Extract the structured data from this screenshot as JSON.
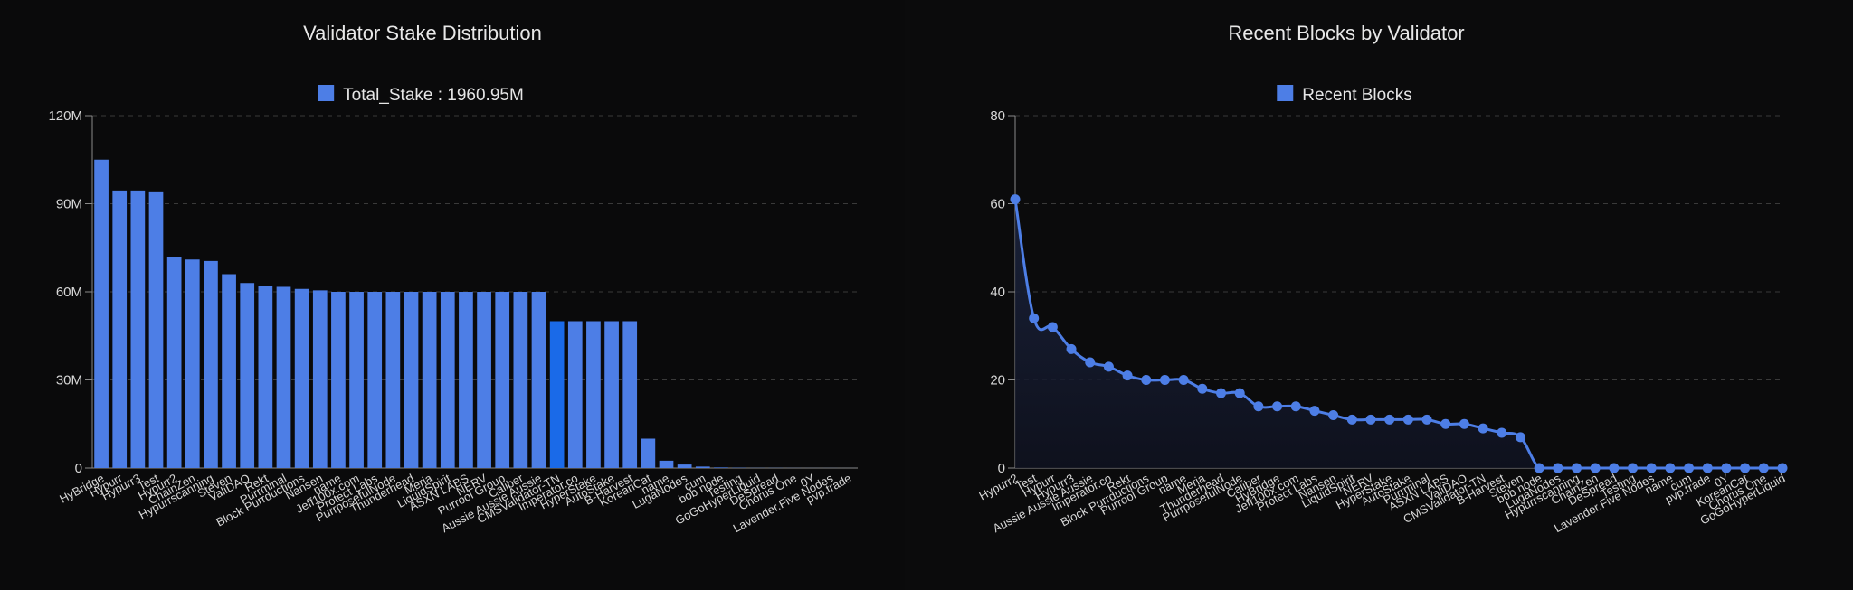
{
  "chart_data": [
    {
      "type": "bar",
      "title": "Validator Stake Distribution",
      "legend": "Total_Stake : 1960.95M",
      "legend_color": "#4d7ee6",
      "bar_color": "#4d7ee6",
      "highlight_color": "#1a6ae8",
      "highlight_index": 25,
      "ylim": [
        0,
        120
      ],
      "yticks": [
        0,
        30,
        60,
        90,
        120
      ],
      "ytick_labels": [
        "0",
        "30M",
        "60M",
        "90M",
        "120M"
      ],
      "grid": true,
      "categories": [
        "HyBridge",
        "Hypurr",
        "Hypurr3",
        "Test",
        "Hypurr2",
        "ChainZen",
        "Hypurrscanning",
        "Steven",
        "ValiDAO",
        "Rekt",
        "Purrminal",
        "Block Purrductions",
        "Nansen",
        "name",
        "Jeff100x.com",
        "Protect Labs",
        "PurrposefulNode",
        "Thunderhead",
        "Meria",
        "LiquidSpirit",
        "ASXN LABS",
        "NERV",
        "Purrool Group",
        "Caliber",
        "Aussie Aussie Aussie",
        "CMSValidator-TN",
        "Imperator.co",
        "HyperStake",
        "AutoStake",
        "B-Harvest",
        "KoreanCat",
        "name",
        "LugaNodes",
        "cum",
        "bob node",
        "Testing",
        "GoGoHyperLiquid",
        "DeSpread",
        "Chorus One",
        "0Y",
        "Lavender.Five Nodes",
        "pvp.trade"
      ],
      "values": [
        105,
        94.5,
        94.5,
        94.2,
        72,
        71,
        70.5,
        66,
        63,
        62,
        61.7,
        61,
        60.5,
        60,
        60,
        60,
        60,
        60,
        60,
        60,
        60,
        60,
        60,
        60,
        60,
        50,
        50,
        50,
        50,
        50,
        10,
        2.5,
        1.2,
        0.5,
        0.2,
        0.1,
        0.05,
        0.05,
        0.03,
        0.02,
        0.02,
        0.01
      ]
    },
    {
      "type": "area",
      "title": "Recent Blocks by Validator",
      "legend": "Recent Blocks",
      "legend_color": "#4d7ee6",
      "line_color": "#4d7ee6",
      "ylim": [
        0,
        80
      ],
      "yticks": [
        0,
        20,
        40,
        60,
        80
      ],
      "ytick_labels": [
        "0",
        "20",
        "40",
        "60",
        "80"
      ],
      "grid": true,
      "categories": [
        "Hypurr2",
        "Test",
        "Hypurr",
        "Hypurr3",
        "Aussie Aussie Aussie",
        "Imperator.co",
        "Rekt",
        "Block Purrductions",
        "Purrool Group",
        "name",
        "Meria",
        "Thunderhead",
        "PurrposefulNode",
        "Caliber",
        "HyBridge",
        "Jeff100x.com",
        "Protect Labs",
        "Nansen",
        "LiquidSpirit",
        "NERV",
        "HyperStake",
        "AutoStake",
        "Purrminal",
        "ASXN LABS",
        "ValiDAO",
        "CMSValidator-TN",
        "B-Harvest",
        "Steven",
        "bob node",
        "LugaNodes",
        "Hypurrscanning",
        "ChainZen",
        "DeSpread",
        "Testing",
        "Lavender.Five Nodes",
        "name",
        "cum",
        "pvp.trade",
        "0Y",
        "KoreanCat",
        "Chorus One",
        "GoGoHyperLiquid"
      ],
      "values": [
        61,
        34,
        32,
        27,
        24,
        23,
        21,
        20,
        20,
        20,
        18,
        17,
        17,
        14,
        14,
        14,
        13,
        12,
        11,
        11,
        11,
        11,
        11,
        10,
        10,
        9,
        8,
        7,
        0,
        0,
        0,
        0,
        0,
        0,
        0,
        0,
        0,
        0,
        0,
        0,
        0,
        0
      ]
    }
  ]
}
